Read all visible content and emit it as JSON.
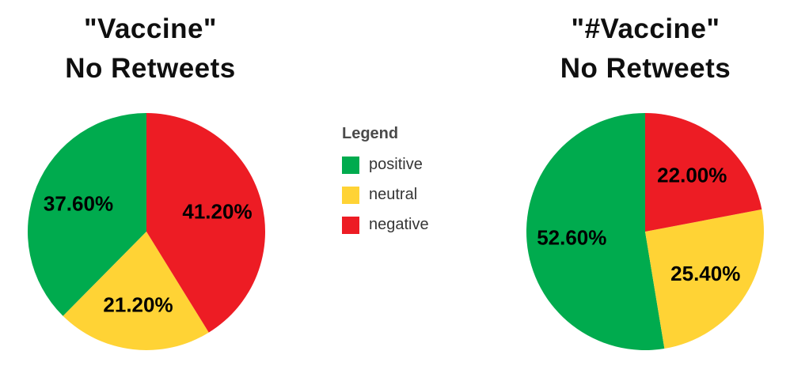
{
  "page": {
    "background": "#ffffff"
  },
  "legend": {
    "title": "Legend",
    "items": [
      {
        "label": "positive",
        "color": "#00ab4e"
      },
      {
        "label": "neutral",
        "color": "#ffd335"
      },
      {
        "label": "negative",
        "color": "#ed1c24"
      }
    ]
  },
  "chart_data": [
    {
      "type": "pie",
      "title_line1": "\"Vaccine\"",
      "title_line2": "No Retweets",
      "labels": [
        "positive",
        "neutral",
        "negative"
      ],
      "values": [
        37.6,
        21.2,
        41.2
      ],
      "value_labels": [
        "37.60%",
        "21.20%",
        "41.20%"
      ],
      "colors": [
        "#00ab4e",
        "#ffd335",
        "#ed1c24"
      ],
      "start_angle_deg": 0,
      "direction": "counterclockwise",
      "label_position": "inside"
    },
    {
      "type": "pie",
      "title_line1": "\"#Vaccine\"",
      "title_line2": "No Retweets",
      "labels": [
        "positive",
        "neutral",
        "negative"
      ],
      "values": [
        52.6,
        25.4,
        22.0
      ],
      "value_labels": [
        "52.60%",
        "25.40%",
        "22.00%"
      ],
      "colors": [
        "#00ab4e",
        "#ffd335",
        "#ed1c24"
      ],
      "start_angle_deg": 0,
      "direction": "counterclockwise",
      "label_position": "inside"
    }
  ]
}
